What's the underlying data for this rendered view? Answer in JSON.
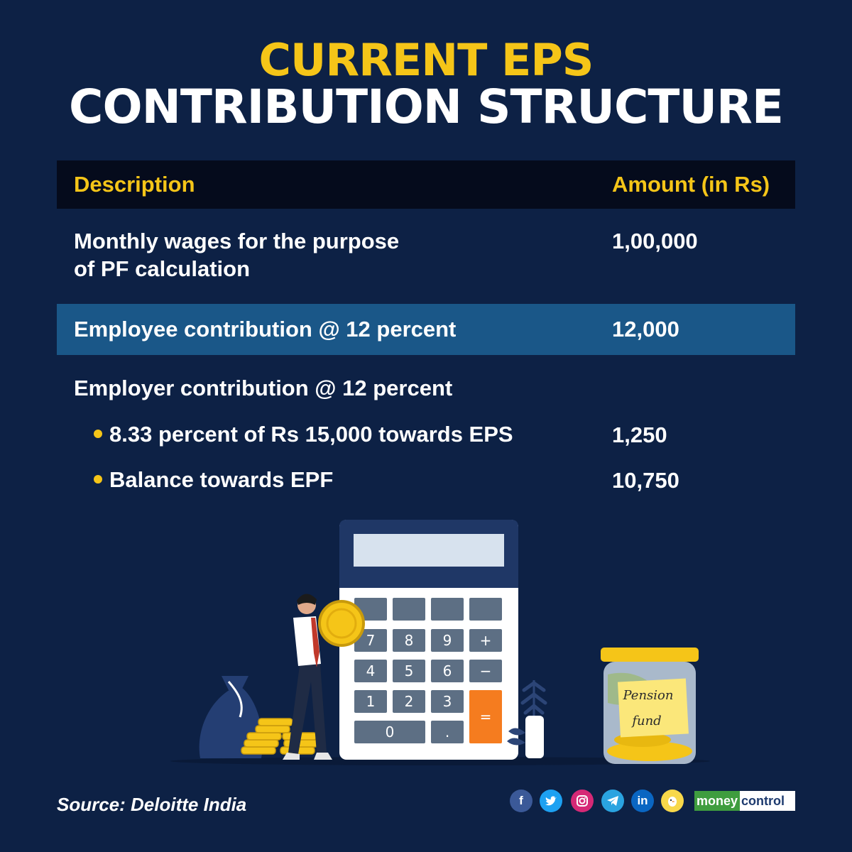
{
  "title": {
    "line1": "CURRENT EPS",
    "line2": "CONTRIBUTION STRUCTURE"
  },
  "table": {
    "headers": {
      "description": "Description",
      "amount": "Amount (in Rs)"
    },
    "rows": [
      {
        "description_line1": "Monthly wages for the purpose",
        "description_line2": "of PF calculation",
        "amount": "1,00,000"
      },
      {
        "description": "Employee contribution @ 12 percent",
        "amount": "12,000"
      },
      {
        "description": "Employer contribution @ 12 percent"
      }
    ],
    "sub_items": [
      {
        "description": "8.33 percent of Rs 15,000 towards EPS",
        "amount": "1,250"
      },
      {
        "description": "Balance towards EPF",
        "amount": "10,750"
      }
    ]
  },
  "illustration": {
    "calculator_keys": [
      "7",
      "8",
      "9",
      "+",
      "4",
      "5",
      "6",
      "−",
      "1",
      "2",
      "3",
      "=",
      "0",
      "."
    ],
    "jar_label_line1": "Pension",
    "jar_label_line2": "fund"
  },
  "footer": {
    "source": "Source: Deloitte India",
    "social_icons": [
      "facebook-icon",
      "twitter-icon",
      "instagram-icon",
      "telegram-icon",
      "linkedin-icon",
      "koo-icon"
    ],
    "brand_part1": "money",
    "brand_part2": "control"
  },
  "colors": {
    "background": "#0d2145",
    "accent": "#f5c518",
    "header_bg": "#050b1c",
    "highlight_row": "#1a5788"
  }
}
